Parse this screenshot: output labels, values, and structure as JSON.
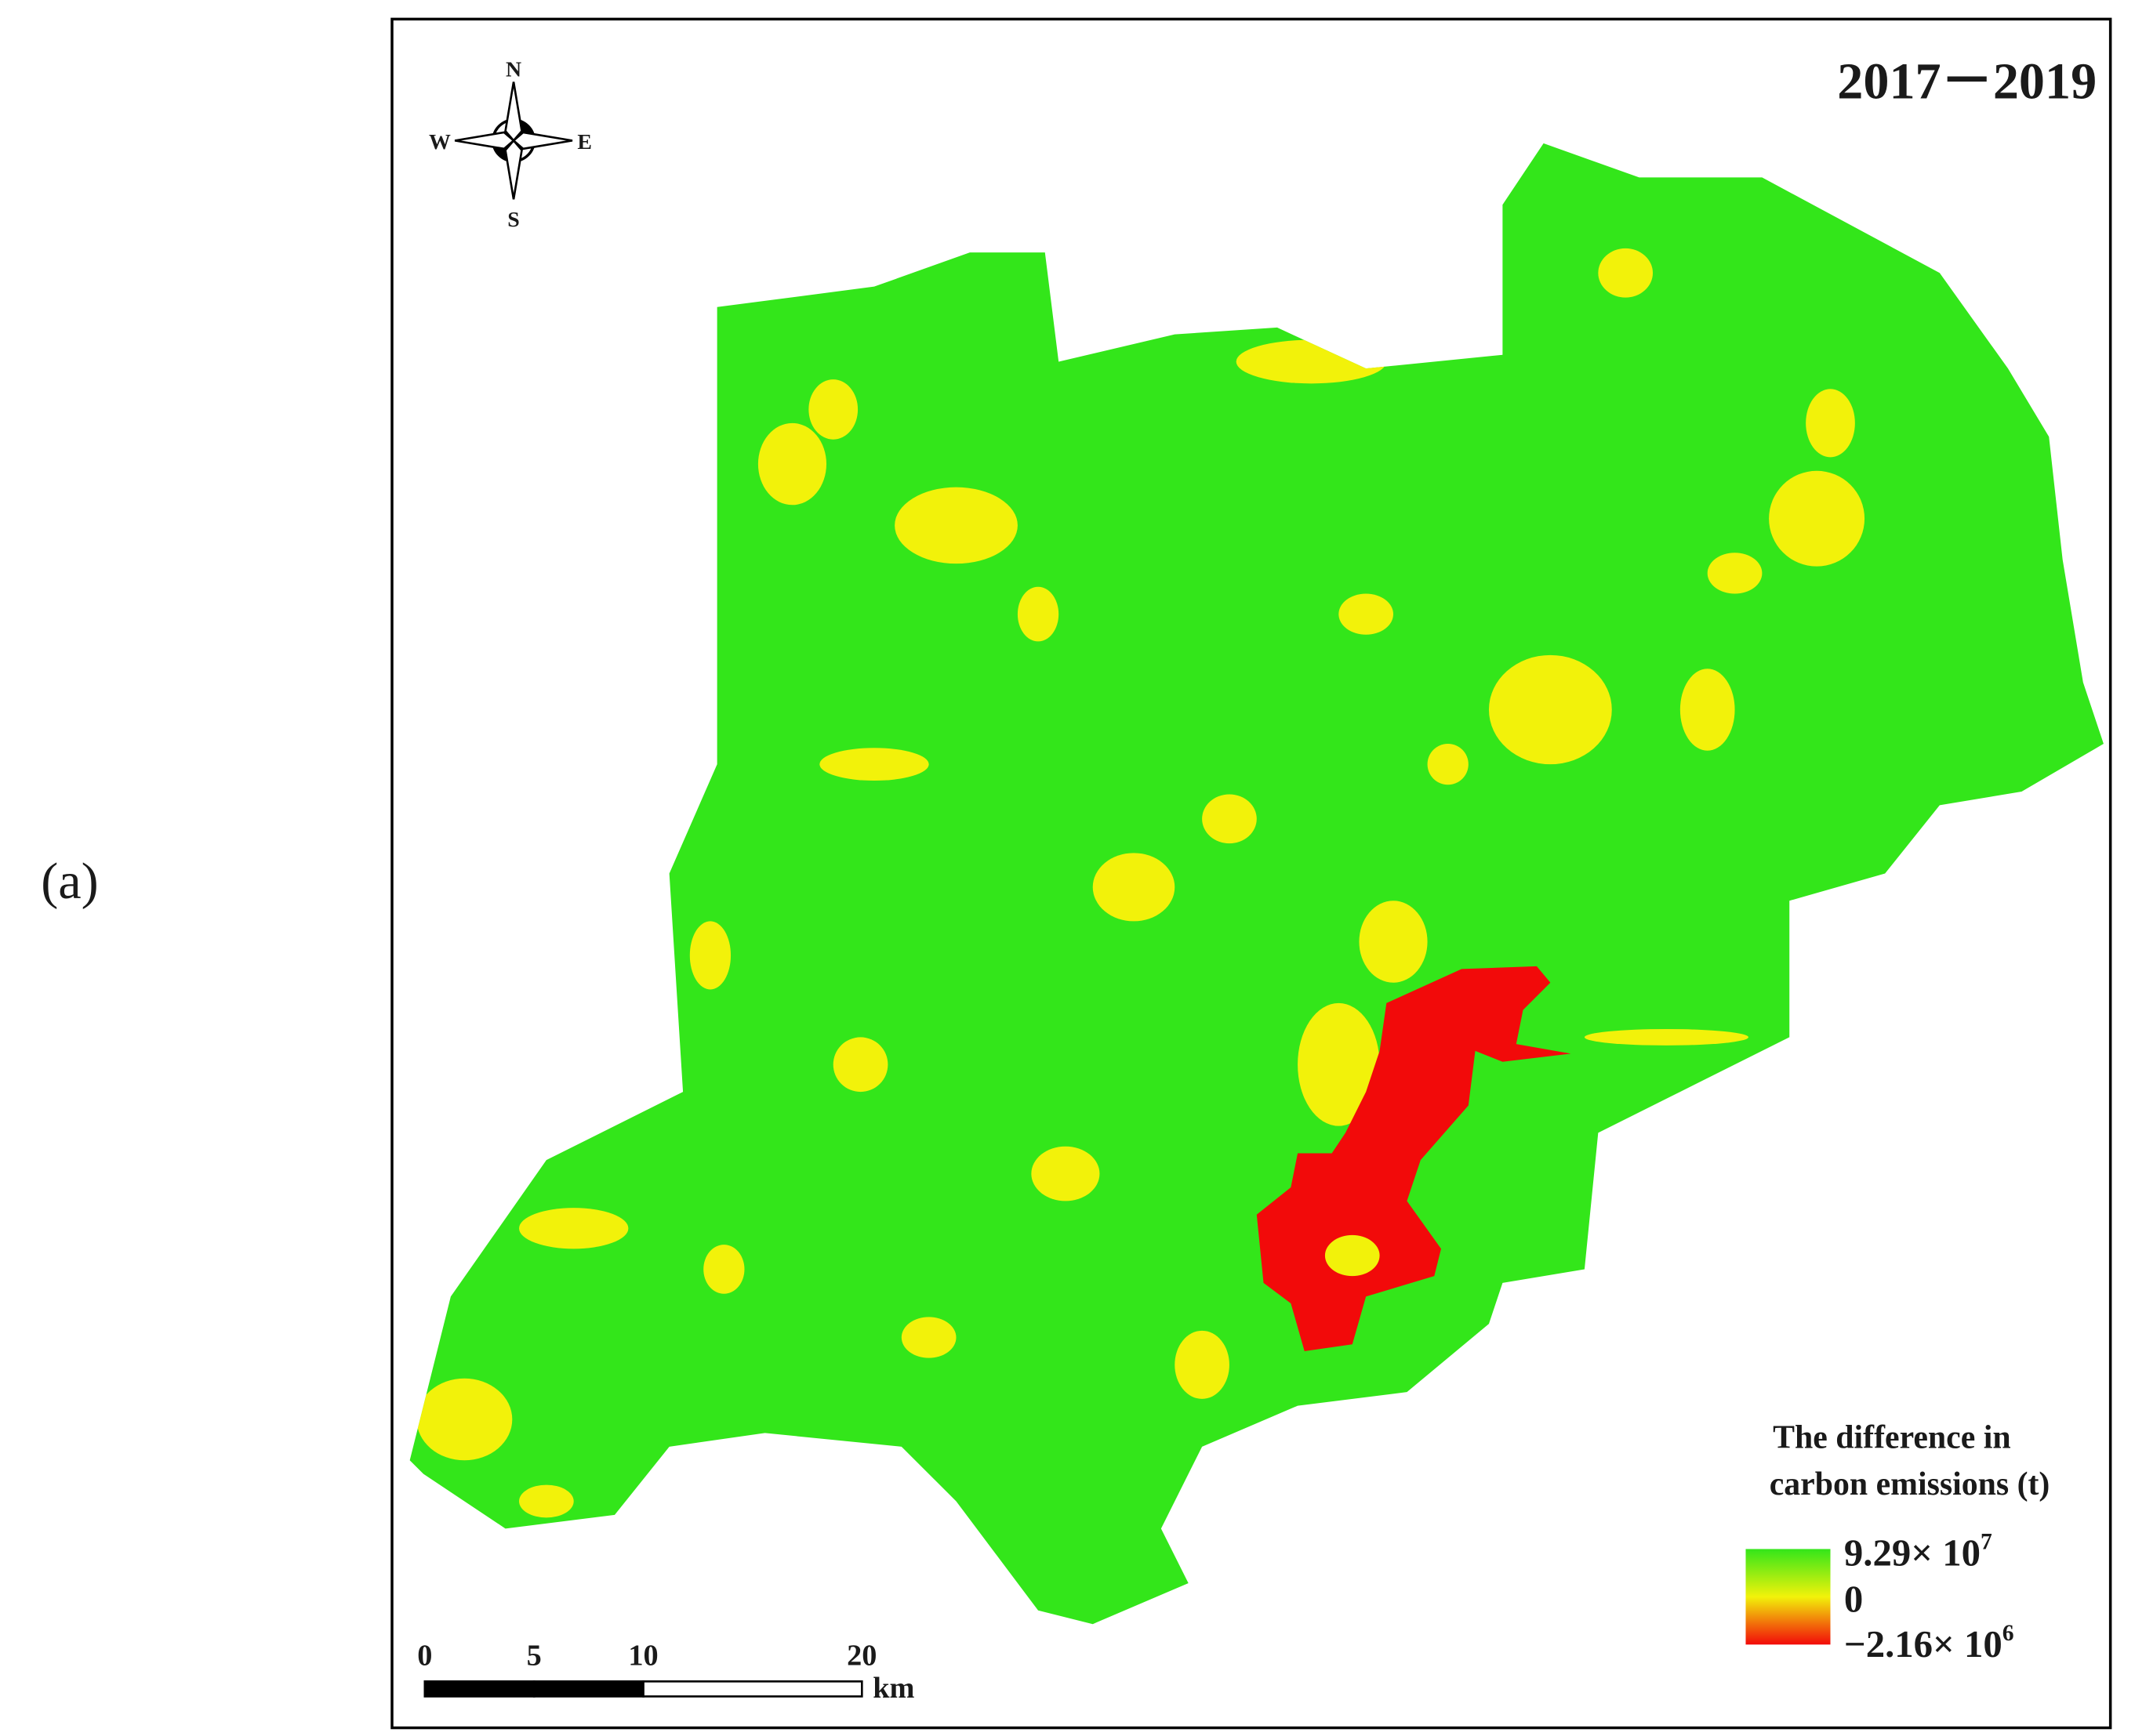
{
  "panel_label": "(a)",
  "title": "2017－2019",
  "compass": {
    "north": "N",
    "south": "S",
    "west": "W",
    "east": "E"
  },
  "scale_bar": {
    "ticks": [
      0,
      5,
      10,
      20
    ],
    "unit": "km"
  },
  "legend": {
    "title_lines": [
      "The difference in",
      "carbon emissions (t)"
    ],
    "labels": [
      {
        "base": "9.29× 10",
        "exponent": "7"
      },
      {
        "base": "0"
      },
      {
        "base": "−2.16× 10",
        "exponent": "6"
      }
    ]
  }
}
